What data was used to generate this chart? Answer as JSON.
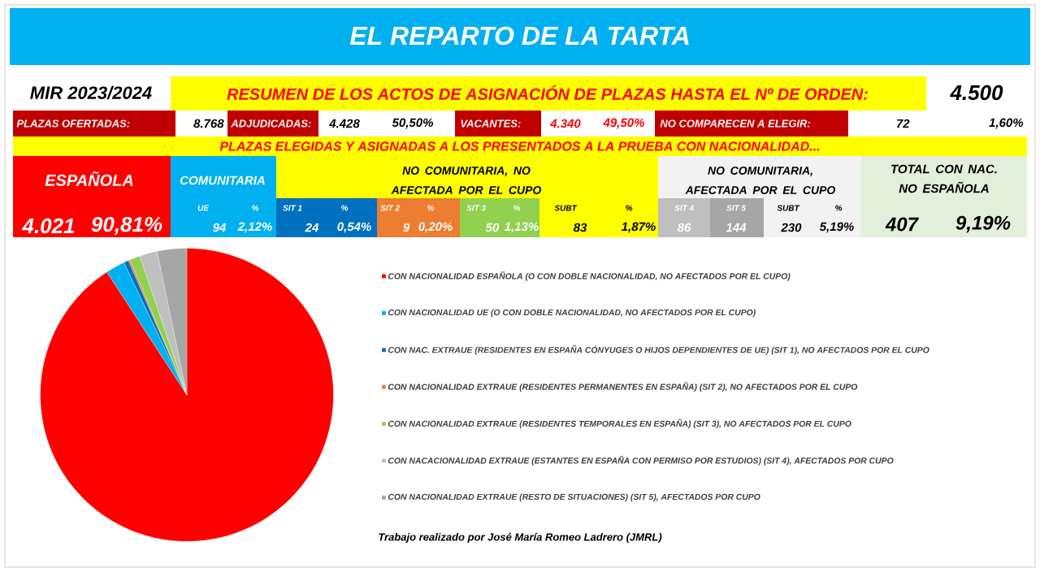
{
  "chart_data": {
    "type": "pie",
    "title": "EL REPARTO DE LA TARTA",
    "categories": [
      "CON NACIONALIDAD ESPAÑOLA (O CON DOBLE NACIONALIDAD, NO AFECTADOS POR EL CUPO)",
      "CON NACIONALIDAD UE (O CON DOBLE NACIONALIDAD, NO AFECTADOS POR EL CUPO)",
      "CON NAC. EXTRAUE (RESIDENTES EN ESPAÑA CÓNYUGES O HIJOS DEPENDIENTES DE UE) (SIT 1), NO AFECTADOS POR EL CUPO",
      "CON NACIONALIDAD EXTRAUE (RESIDENTES PERMANENTES EN ESPAÑA) (SIT 2), NO AFECTADOS POR EL CUPO",
      "CON NACIONALIDAD EXTRAUE (RESIDENTES TEMPORALES EN ESPAÑA) (SIT 3), NO AFECTADOS POR EL CUPO",
      "CON NACACIONALIDAD EXTRAUE (ESTANTES EN ESPAÑA CON PERMISO POR ESTUDIOS) (SIT 4), AFECTADOS POR CUPO",
      "CON NACIONALIDAD EXTRAUE (RESTO DE SITUACIONES) (SIT 5), AFECTADOS POR CUPO"
    ],
    "values": [
      90.81,
      2.12,
      0.54,
      0.2,
      1.13,
      1.94,
      3.26
    ],
    "colors": [
      "#ff0000",
      "#00b0f0",
      "#0070c0",
      "#ed7d31",
      "#92d050",
      "#bfbfbf",
      "#a6a6a6"
    ],
    "legend": "right",
    "annotations": [
      "MIR 2023/2024",
      "RESUMEN DE LOS ACTOS DE ASIGNACIÓN DE PLAZAS HASTA EL Nº DE ORDEN:",
      "4.500",
      "PLAZAS OFERTADAS:",
      "8.768",
      "ADJUDICADAS:",
      "4.428",
      "50,50%",
      "VACANTES:",
      "4.340",
      "49,50%",
      "NO COMPARECEN A ELEGIR:",
      "72",
      "1,60%",
      "PLAZAS ELEGIDAS Y ASIGNADAS A LOS PRESENTADOS A LA PRUEBA CON NACIONALIDAD...",
      "ESPAÑOLA",
      "4.021",
      "90,81%",
      "COMUNITARIA",
      "UE",
      "%",
      "94",
      "2,12%",
      "NO COMUNITARIA, NO AFECTADA POR EL CUPO",
      "SIT 1",
      "%",
      "24",
      "0,54%",
      "SIT 2",
      "%",
      "9",
      "0,20%",
      "SIT 3",
      "%",
      "50",
      "1,13%",
      "SUBT",
      "%",
      "83",
      "1,87%",
      "NO COMUNITARIA, AFECTADA POR EL CUPO",
      "SIT 4",
      "SIT 5",
      "86",
      "144",
      "SUBT",
      "%",
      "230",
      "5,19%",
      "TOTAL CON NAC. NO ESPAÑOLA",
      "407",
      "9,19%",
      "Trabajo realizado por José María Romeo Ladrero (JMRL)"
    ]
  }
}
